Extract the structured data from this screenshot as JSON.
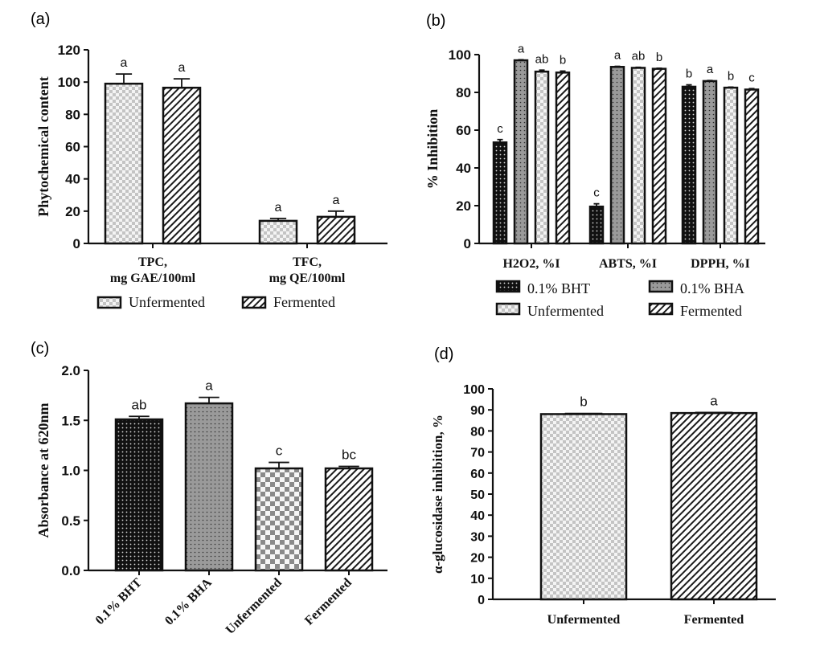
{
  "chart_data": [
    {
      "panel": "(a)",
      "type": "bar",
      "categories": [
        [
          "TPC,",
          "mg GAE/100ml"
        ],
        [
          "TFC,",
          "mg QE/100ml"
        ]
      ],
      "ylabel": "Phytochemical content",
      "xlabel": "",
      "ylim": [
        0,
        120
      ],
      "yticks": [
        0,
        20,
        40,
        60,
        80,
        100,
        120
      ],
      "series": [
        {
          "name": "Unfermented",
          "pattern": "checker",
          "values": [
            99,
            14
          ],
          "errors": [
            6,
            1.5
          ],
          "letters": [
            "a",
            "a"
          ]
        },
        {
          "name": "Fermented",
          "pattern": "hatch",
          "values": [
            96.5,
            16.5
          ],
          "errors": [
            5.5,
            3.5
          ],
          "letters": [
            "a",
            "a"
          ]
        }
      ],
      "legend": {
        "placement": "bottom",
        "entries": [
          "Unfermented",
          "Fermented"
        ]
      },
      "grid": false
    },
    {
      "panel": "(b)",
      "type": "bar",
      "categories": [
        "H2O2, %I",
        "ABTS, %I",
        "DPPH, %I"
      ],
      "ylabel": "% Inhibition",
      "xlabel": "",
      "ylim": [
        0,
        100
      ],
      "yticks": [
        0,
        20,
        40,
        60,
        80,
        100
      ],
      "series": [
        {
          "name": "0.1% BHT",
          "pattern": "dots-dark",
          "values": [
            53.5,
            19.5,
            83
          ],
          "errors": [
            1.5,
            1.5,
            1
          ],
          "letters": [
            "c",
            "c",
            "b"
          ]
        },
        {
          "name": "0.1% BHA",
          "pattern": "dots-gray",
          "values": [
            97,
            93.5,
            86
          ],
          "errors": [
            0.3,
            0.3,
            0.3
          ],
          "letters": [
            "a",
            "a",
            "a"
          ]
        },
        {
          "name": "Unfermented",
          "pattern": "checker",
          "values": [
            91,
            93,
            82.5
          ],
          "errors": [
            0.8,
            0.3,
            0.3
          ],
          "letters": [
            "ab",
            "ab",
            "b"
          ]
        },
        {
          "name": "Fermented",
          "pattern": "hatch",
          "values": [
            90.5,
            92.5,
            81.5
          ],
          "errors": [
            0.8,
            0.3,
            0.5
          ],
          "letters": [
            "b",
            "b",
            "c"
          ]
        }
      ],
      "legend": {
        "placement": "bottom",
        "entries": [
          "0.1% BHT",
          "0.1% BHA",
          "Unfermented",
          "Fermented"
        ]
      },
      "grid": false
    },
    {
      "panel": "(c)",
      "type": "bar",
      "categories": [
        "0.1% BHT",
        "0.1% BHA",
        "Unfermented",
        "Fermented"
      ],
      "ylabel": "Absorbance at 620nm",
      "xlabel": "",
      "ylim": [
        0,
        2.0
      ],
      "yticks": [
        0.0,
        0.5,
        1.0,
        1.5,
        2.0
      ],
      "ytick_labels": [
        "0.0",
        "0.5",
        "1.0",
        "1.5",
        "2.0"
      ],
      "values": [
        1.51,
        1.67,
        1.02,
        1.02
      ],
      "errors": [
        0.03,
        0.06,
        0.06,
        0.02
      ],
      "letters": [
        "ab",
        "a",
        "c",
        "bc"
      ],
      "patterns": [
        "dots-dark",
        "dots-gray",
        "checker",
        "hatch"
      ],
      "grid": false
    },
    {
      "panel": "(d)",
      "type": "bar",
      "categories": [
        "Unfermented",
        "Fermented"
      ],
      "ylabel": "α-glucosidase inhibition, %",
      "xlabel": "",
      "ylim": [
        0,
        100
      ],
      "yticks": [
        0,
        10,
        20,
        30,
        40,
        50,
        60,
        70,
        80,
        90,
        100
      ],
      "values": [
        88,
        88.5
      ],
      "errors": [
        0.3,
        0.3
      ],
      "letters": [
        "b",
        "a"
      ],
      "patterns": [
        "checker",
        "hatch"
      ],
      "grid": false
    }
  ]
}
